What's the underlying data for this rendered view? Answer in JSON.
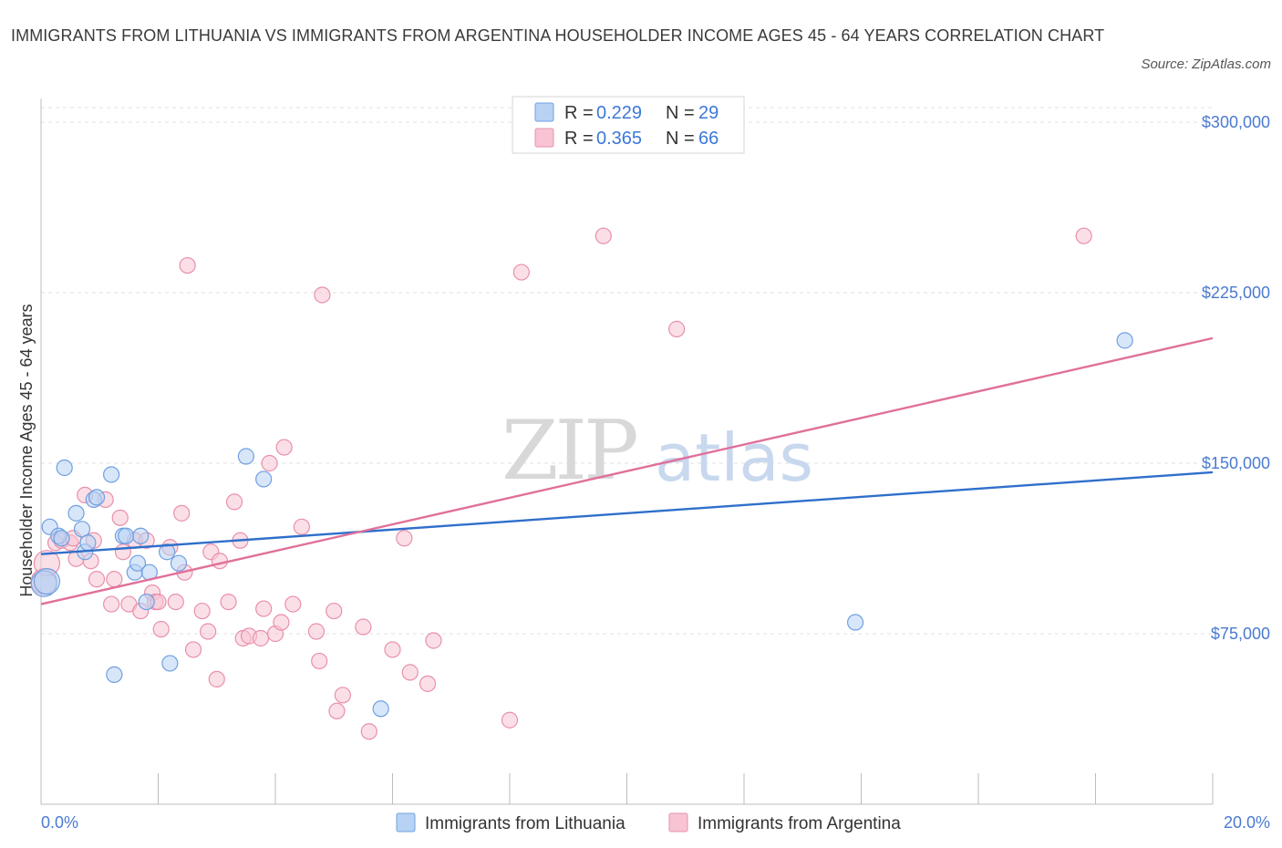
{
  "title": "IMMIGRANTS FROM LITHUANIA VS IMMIGRANTS FROM ARGENTINA HOUSEHOLDER INCOME AGES 45 - 64 YEARS CORRELATION CHART",
  "source": "Source: ZipAtlas.com",
  "watermark": {
    "zip": "ZIP",
    "atlas": "atlas"
  },
  "chart_data": {
    "type": "scatter",
    "ylabel": "Householder Income Ages 45 - 64 years",
    "xlim": [
      0,
      20
    ],
    "ylim": [
      0,
      300000
    ],
    "x_tick_labels": {
      "min": "0.0%",
      "max": "20.0%"
    },
    "y_ticks": [
      {
        "value": 75000,
        "label": "$75,000"
      },
      {
        "value": 150000,
        "label": "$150,000"
      },
      {
        "value": 225000,
        "label": "$225,000"
      },
      {
        "value": 300000,
        "label": "$300,000"
      }
    ],
    "grid": true,
    "legend_position": "top-center",
    "series": [
      {
        "name": "Immigrants from Lithuania",
        "color": "#6fa0e0",
        "fill": "#b8d2f4",
        "line_color": "#2f6fcb",
        "R": "0.229",
        "N": "29",
        "trend": {
          "x0": 0,
          "y0": 110000,
          "x1": 20,
          "y1": 146000
        },
        "points": [
          [
            0.05,
            97000
          ],
          [
            0.15,
            122000
          ],
          [
            0.3,
            118000
          ],
          [
            0.35,
            117000
          ],
          [
            0.4,
            148000
          ],
          [
            0.6,
            128000
          ],
          [
            0.7,
            121000
          ],
          [
            0.75,
            111000
          ],
          [
            0.8,
            115000
          ],
          [
            0.9,
            134000
          ],
          [
            0.95,
            135000
          ],
          [
            1.2,
            145000
          ],
          [
            1.25,
            57000
          ],
          [
            1.4,
            118000
          ],
          [
            1.45,
            118000
          ],
          [
            1.6,
            102000
          ],
          [
            1.65,
            106000
          ],
          [
            1.7,
            118000
          ],
          [
            1.8,
            89000
          ],
          [
            1.85,
            102000
          ],
          [
            2.15,
            111000
          ],
          [
            2.2,
            62000
          ],
          [
            2.35,
            106000
          ],
          [
            3.5,
            153000
          ],
          [
            3.8,
            143000
          ],
          [
            5.8,
            42000
          ],
          [
            13.9,
            80000
          ],
          [
            18.5,
            204000
          ],
          [
            0.1,
            98000
          ]
        ]
      },
      {
        "name": "Immigrants from Argentina",
        "color": "#e890ac",
        "fill": "#f8c4d4",
        "line_color": "#e0709a",
        "R": "0.365",
        "N": "66",
        "trend": {
          "x0": 0,
          "y0": 88000,
          "x1": 20,
          "y1": 205000
        },
        "points": [
          [
            0.05,
            98000
          ],
          [
            0.1,
            106000
          ],
          [
            0.25,
            115000
          ],
          [
            0.35,
            116000
          ],
          [
            0.5,
            115000
          ],
          [
            0.55,
            117000
          ],
          [
            0.6,
            108000
          ],
          [
            0.75,
            136000
          ],
          [
            0.85,
            107000
          ],
          [
            0.9,
            116000
          ],
          [
            0.95,
            99000
          ],
          [
            1.1,
            134000
          ],
          [
            1.2,
            88000
          ],
          [
            1.25,
            99000
          ],
          [
            1.35,
            126000
          ],
          [
            1.4,
            111000
          ],
          [
            1.5,
            88000
          ],
          [
            1.6,
            116000
          ],
          [
            1.7,
            85000
          ],
          [
            1.8,
            116000
          ],
          [
            1.9,
            93000
          ],
          [
            1.95,
            89000
          ],
          [
            2.0,
            89000
          ],
          [
            2.05,
            77000
          ],
          [
            2.2,
            113000
          ],
          [
            2.3,
            89000
          ],
          [
            2.4,
            128000
          ],
          [
            2.45,
            102000
          ],
          [
            2.5,
            237000
          ],
          [
            2.6,
            68000
          ],
          [
            2.75,
            85000
          ],
          [
            2.85,
            76000
          ],
          [
            2.9,
            111000
          ],
          [
            3.0,
            55000
          ],
          [
            3.05,
            107000
          ],
          [
            3.2,
            89000
          ],
          [
            3.3,
            133000
          ],
          [
            3.4,
            116000
          ],
          [
            3.45,
            73000
          ],
          [
            3.55,
            74000
          ],
          [
            3.75,
            73000
          ],
          [
            3.8,
            86000
          ],
          [
            3.9,
            150000
          ],
          [
            4.0,
            75000
          ],
          [
            4.1,
            80000
          ],
          [
            4.15,
            157000
          ],
          [
            4.3,
            88000
          ],
          [
            4.45,
            122000
          ],
          [
            4.7,
            76000
          ],
          [
            4.75,
            63000
          ],
          [
            4.8,
            224000
          ],
          [
            5.0,
            85000
          ],
          [
            5.05,
            41000
          ],
          [
            5.15,
            48000
          ],
          [
            5.5,
            78000
          ],
          [
            5.6,
            32000
          ],
          [
            6.0,
            68000
          ],
          [
            6.2,
            117000
          ],
          [
            6.3,
            58000
          ],
          [
            6.6,
            53000
          ],
          [
            6.7,
            72000
          ],
          [
            8.0,
            37000
          ],
          [
            8.2,
            234000
          ],
          [
            9.6,
            250000
          ],
          [
            10.85,
            209000
          ],
          [
            17.8,
            250000
          ]
        ]
      }
    ]
  }
}
